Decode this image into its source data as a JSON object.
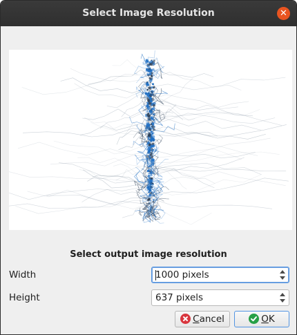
{
  "dialog": {
    "title": "Select Image Resolution",
    "close_icon": "close-icon",
    "heading": "Select output image resolution"
  },
  "fields": {
    "width": {
      "label": "Width",
      "value": "1000 pixels"
    },
    "height": {
      "label": "Height",
      "value": "637 pixels"
    }
  },
  "buttons": {
    "cancel": {
      "mnemonic": "C",
      "rest": "ancel",
      "icon": "cancel-icon"
    },
    "ok": {
      "mnemonic": "O",
      "rest": "K",
      "icon": "ok-check-icon"
    }
  },
  "colors": {
    "titlebar": "#2f2f2f",
    "close": "#e95420",
    "accent": "#5294e2",
    "neuron": "#1f6fc4",
    "fibers": "#7a8a9a"
  }
}
